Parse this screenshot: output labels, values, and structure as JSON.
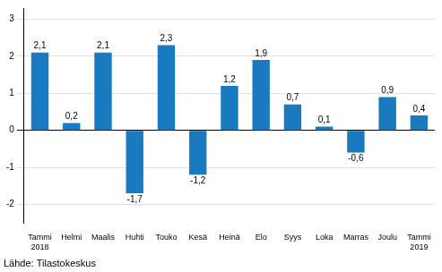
{
  "chart_data": {
    "type": "bar",
    "categories": [
      "Tammi\n2018",
      "Helmi",
      "Maalis",
      "Huhti",
      "Touko",
      "Kesä",
      "Heinä",
      "Elo",
      "Syys",
      "Loka",
      "Marras",
      "Joulu",
      "Tammi\n2019"
    ],
    "values": [
      2.1,
      0.2,
      2.1,
      -1.7,
      2.3,
      -1.2,
      1.2,
      1.9,
      0.7,
      0.1,
      -0.6,
      0.9,
      0.4
    ],
    "value_labels": [
      "2,1",
      "0,2",
      "2,1",
      "-1,7",
      "2,3",
      "-1,2",
      "1,2",
      "1,9",
      "0,7",
      "0,1",
      "-0,6",
      "0,9",
      "0,4"
    ],
    "data_labels": true,
    "color": "#1a7abf",
    "ylim": [
      -2.5,
      3.3
    ],
    "yticks": [
      -2,
      -1,
      0,
      1,
      2,
      3
    ],
    "grid": true,
    "annotations": [
      "Lähde: Tilastokeskus"
    ]
  }
}
